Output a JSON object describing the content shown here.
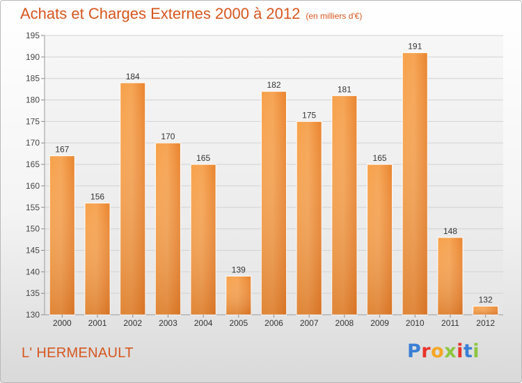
{
  "chart_data": {
    "type": "bar",
    "title": "Achats et Charges Externes 2000 à 2012",
    "subtitle": "(en milliers d'€)",
    "categories": [
      "2000",
      "2001",
      "2002",
      "2003",
      "2004",
      "2005",
      "2006",
      "2007",
      "2008",
      "2009",
      "2010",
      "2011",
      "2012"
    ],
    "values": [
      167,
      156,
      184,
      170,
      165,
      139,
      182,
      175,
      181,
      165,
      191,
      148,
      132
    ],
    "ylim": [
      130,
      195
    ],
    "yticks": [
      130,
      135,
      140,
      145,
      150,
      155,
      160,
      165,
      170,
      175,
      180,
      185,
      190,
      195
    ],
    "grid": true,
    "bar_color": "#f08a30",
    "xlabel": "",
    "ylabel": ""
  },
  "location_label": "L' HERMENAULT",
  "logo": {
    "text": "Proxiti",
    "letter_colors": [
      "#3a7fd5",
      "#e8332a",
      "#f5a623",
      "#8dc63f",
      "#e8332a",
      "#3a7fd5",
      "#8dc63f"
    ]
  }
}
